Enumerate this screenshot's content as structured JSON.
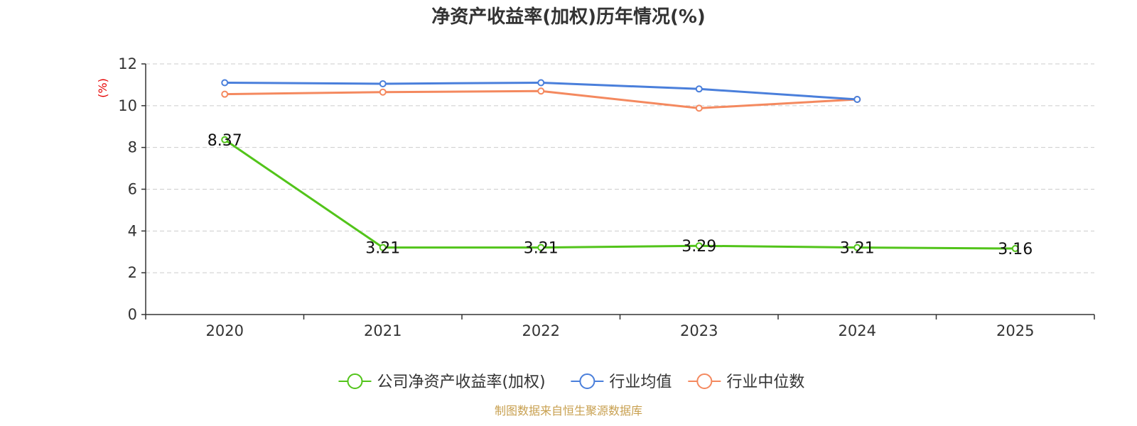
{
  "chart_data": {
    "type": "line",
    "title": "净资产收益率(加权)历年情况(%)",
    "ylabel": "(%)",
    "ylim": [
      0,
      12
    ],
    "yticks": [
      0,
      2,
      4,
      6,
      8,
      10,
      12
    ],
    "categories": [
      "2020",
      "2021",
      "2022",
      "2023",
      "2024",
      "2025"
    ],
    "grid": "horizontal dashed",
    "legend_position": "bottom",
    "series": [
      {
        "name": "公司净资产收益率(加权)",
        "color": "#52c41a",
        "values": [
          8.37,
          3.21,
          3.21,
          3.29,
          3.21,
          3.16
        ],
        "labels": [
          "8.37",
          "3.21",
          "3.21",
          "3.29",
          "3.21",
          "3.16"
        ]
      },
      {
        "name": "行业均值",
        "color": "#4a7fdb",
        "values": [
          11.1,
          11.05,
          11.1,
          10.8,
          10.3,
          null
        ]
      },
      {
        "name": "行业中位数",
        "color": "#f4895f",
        "values": [
          10.55,
          10.65,
          10.7,
          9.88,
          10.3,
          null
        ]
      }
    ]
  },
  "source": "制图数据来自恒生聚源数据库",
  "colors": {
    "ylabel": "#e60000",
    "source": "#c8a050",
    "axis": "#333333",
    "grid": "#cccccc"
  }
}
